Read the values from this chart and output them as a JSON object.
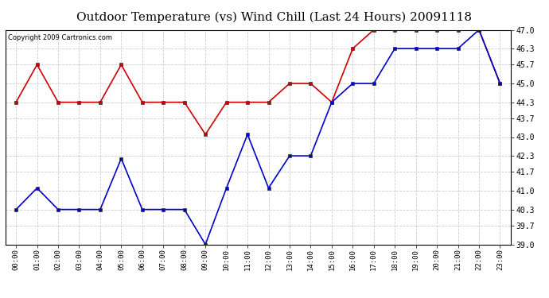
{
  "title": "Outdoor Temperature (vs) Wind Chill (Last 24 Hours) 20091118",
  "copyright_text": "Copyright 2009 Cartronics.com",
  "x_labels": [
    "00:00",
    "01:00",
    "02:00",
    "03:00",
    "04:00",
    "05:00",
    "06:00",
    "07:00",
    "08:00",
    "09:00",
    "10:00",
    "11:00",
    "12:00",
    "13:00",
    "14:00",
    "15:00",
    "16:00",
    "17:00",
    "18:00",
    "19:00",
    "20:00",
    "21:00",
    "22:00",
    "23:00"
  ],
  "red_data": [
    44.3,
    45.7,
    44.3,
    44.3,
    44.3,
    45.7,
    44.3,
    44.3,
    44.3,
    43.1,
    44.3,
    44.3,
    44.3,
    45.0,
    45.0,
    44.3,
    46.3,
    47.0,
    47.0,
    47.0,
    47.0,
    47.0,
    47.0,
    45.0
  ],
  "blue_data": [
    40.3,
    41.1,
    40.3,
    40.3,
    40.3,
    42.2,
    40.3,
    40.3,
    40.3,
    39.0,
    41.1,
    43.1,
    41.1,
    42.3,
    42.3,
    44.3,
    45.0,
    45.0,
    46.3,
    46.3,
    46.3,
    46.3,
    47.0,
    45.0
  ],
  "red_color": "#cc0000",
  "blue_color": "#0000cc",
  "ylim_min": 39.0,
  "ylim_max": 47.0,
  "yticks": [
    39.0,
    39.7,
    40.3,
    41.0,
    41.7,
    42.3,
    43.0,
    43.7,
    44.3,
    45.0,
    45.7,
    46.3,
    47.0
  ],
  "bg_color": "#ffffff",
  "grid_color": "#cccccc",
  "title_fontsize": 11,
  "copyright_fontsize": 6,
  "marker": "s",
  "marker_size": 3,
  "line_width": 1.2
}
